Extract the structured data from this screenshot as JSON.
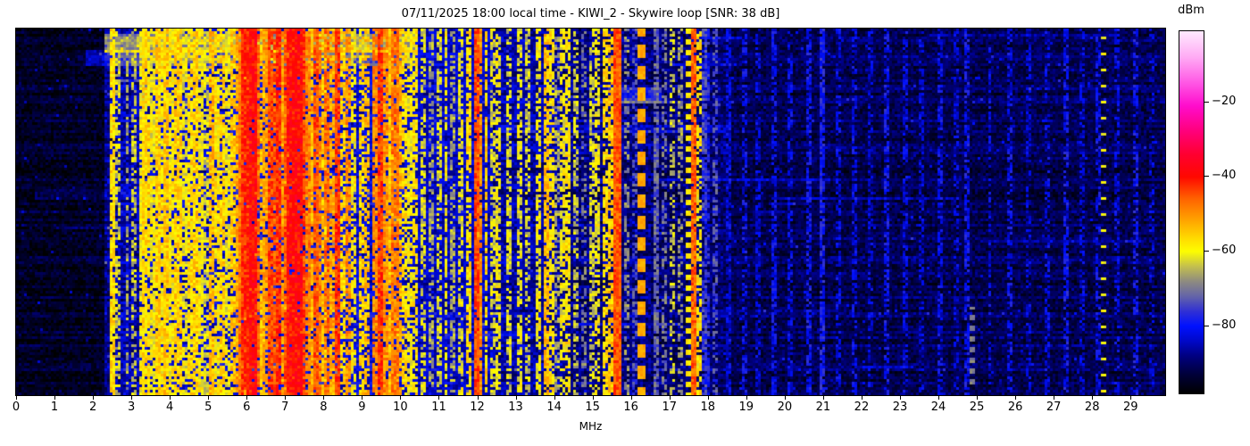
{
  "header": {
    "title": "07/11/2025 18:00 local time - KIWI_2 - Skywire loop [SNR: 38 dB]"
  },
  "axes": {
    "xlabel": "MHz",
    "xticks": [
      0,
      1,
      2,
      3,
      4,
      5,
      6,
      7,
      8,
      9,
      10,
      11,
      12,
      13,
      14,
      15,
      16,
      17,
      18,
      19,
      20,
      21,
      22,
      23,
      24,
      25,
      26,
      27,
      28,
      29
    ]
  },
  "colorbar": {
    "label": "dBm",
    "top_dbm": -1,
    "bottom_dbm": -98,
    "ticks": [
      {
        "value": -20,
        "label": "−20"
      },
      {
        "value": -40,
        "label": "−40"
      },
      {
        "value": -60,
        "label": "−60"
      },
      {
        "value": -80,
        "label": "−80"
      }
    ]
  },
  "chart_data": {
    "type": "heatmap",
    "title": "07/11/2025 18:00 local time - KIWI_2 - Skywire loop [SNR: 38 dB]",
    "xlabel": "MHz",
    "ylabel": "",
    "x_range_mhz": [
      0,
      29.9
    ],
    "colorbar_label": "dBm",
    "colorbar_ticks_dbm": [
      -20,
      -40,
      -60,
      -80
    ],
    "legend": "none",
    "grid": false,
    "colormap_stops": [
      [
        -1,
        "#ffeaff"
      ],
      [
        -8,
        "#ffaaf4"
      ],
      [
        -15,
        "#ff55e4"
      ],
      [
        -21,
        "#ff0ccc"
      ],
      [
        -28,
        "#ff0078"
      ],
      [
        -34,
        "#ff0030"
      ],
      [
        -40,
        "#ff0800"
      ],
      [
        -46,
        "#ff6400"
      ],
      [
        -52,
        "#ffa800"
      ],
      [
        -57,
        "#ffe000"
      ],
      [
        -60,
        "#fdfd00"
      ],
      [
        -64,
        "#c3bf4e"
      ],
      [
        -68,
        "#8e8b80"
      ],
      [
        -72,
        "#6464a8"
      ],
      [
        -76,
        "#3030d4"
      ],
      [
        -80,
        "#0011ff"
      ],
      [
        -84,
        "#0008c8"
      ],
      [
        -88,
        "#000080"
      ],
      [
        -93,
        "#000038"
      ],
      [
        -98,
        "#000000"
      ]
    ],
    "noise_floor_segments": [
      [
        0.0,
        2.3,
        -94.5,
        3.5
      ],
      [
        2.3,
        2.6,
        -87,
        5
      ],
      [
        2.6,
        3.2,
        -85,
        5
      ],
      [
        3.2,
        5.7,
        -82.5,
        5
      ],
      [
        5.7,
        8.7,
        -81,
        5.5
      ],
      [
        8.7,
        10.1,
        -82,
        5
      ],
      [
        10.1,
        12.4,
        -83.5,
        4.5
      ],
      [
        12.4,
        14.2,
        -86,
        4.5
      ],
      [
        14.2,
        16.5,
        -88,
        4.5
      ],
      [
        16.5,
        18.6,
        -89,
        4.5
      ],
      [
        18.6,
        29.9,
        -91,
        4
      ]
    ],
    "signal_bands": [
      [
        2.46,
        0.07,
        -57,
        0.9
      ],
      [
        2.62,
        0.06,
        -63,
        0.6
      ],
      [
        2.86,
        0.06,
        -66,
        0.5
      ],
      [
        3.06,
        0.06,
        -64,
        0.55
      ],
      [
        3.22,
        0.07,
        -60,
        0.75
      ],
      [
        3.35,
        0.09,
        -57,
        0.85
      ],
      [
        3.5,
        0.07,
        -60,
        0.8
      ],
      [
        3.63,
        0.07,
        -56,
        0.85
      ],
      [
        3.76,
        0.09,
        -58,
        0.8
      ],
      [
        3.9,
        0.07,
        -55,
        0.9
      ],
      [
        4.04,
        0.07,
        -59,
        0.8
      ],
      [
        4.18,
        0.09,
        -56,
        0.85
      ],
      [
        4.33,
        0.07,
        -61,
        0.7
      ],
      [
        4.47,
        0.07,
        -57,
        0.8
      ],
      [
        4.62,
        0.09,
        -56,
        0.85
      ],
      [
        4.78,
        0.07,
        -59,
        0.8
      ],
      [
        4.92,
        0.07,
        -62,
        0.7
      ],
      [
        5.06,
        0.09,
        -54,
        0.85
      ],
      [
        5.2,
        0.07,
        -58,
        0.8
      ],
      [
        5.34,
        0.07,
        -56,
        0.8
      ],
      [
        5.48,
        0.07,
        -60,
        0.75
      ],
      [
        5.62,
        0.07,
        -55,
        0.8
      ],
      [
        5.75,
        0.07,
        -52,
        0.8
      ],
      [
        5.85,
        0.08,
        -48,
        0.9
      ],
      [
        5.93,
        0.1,
        -42,
        0.95
      ],
      [
        6.03,
        0.08,
        -45,
        0.9
      ],
      [
        6.12,
        0.12,
        -39,
        0.95
      ],
      [
        6.24,
        0.08,
        -47,
        0.85
      ],
      [
        6.36,
        0.07,
        -54,
        0.75
      ],
      [
        6.47,
        0.07,
        -51,
        0.8
      ],
      [
        6.58,
        0.08,
        -44,
        0.9
      ],
      [
        6.7,
        0.08,
        -46,
        0.85
      ],
      [
        6.8,
        0.09,
        -42,
        0.9
      ],
      [
        6.92,
        0.07,
        -51,
        0.8
      ],
      [
        7.02,
        0.08,
        -45,
        0.9
      ],
      [
        7.12,
        0.1,
        -40,
        0.95
      ],
      [
        7.22,
        0.08,
        -43,
        0.9
      ],
      [
        7.32,
        0.1,
        -39,
        0.95
      ],
      [
        7.44,
        0.08,
        -44,
        0.9
      ],
      [
        7.55,
        0.07,
        -48,
        0.85
      ],
      [
        7.66,
        0.07,
        -53,
        0.8
      ],
      [
        7.76,
        0.08,
        -45,
        0.85
      ],
      [
        7.87,
        0.07,
        -49,
        0.85
      ],
      [
        7.98,
        0.07,
        -55,
        0.75
      ],
      [
        8.08,
        0.07,
        -47,
        0.8
      ],
      [
        8.2,
        0.07,
        -52,
        0.75
      ],
      [
        8.32,
        0.09,
        -43,
        0.9
      ],
      [
        8.45,
        0.07,
        -56,
        0.7
      ],
      [
        8.6,
        0.07,
        -50,
        0.75
      ],
      [
        8.76,
        0.07,
        -59,
        0.65
      ],
      [
        8.94,
        0.07,
        -56,
        0.7
      ],
      [
        9.12,
        0.07,
        -54,
        0.7
      ],
      [
        9.3,
        0.08,
        -49,
        0.8
      ],
      [
        9.43,
        0.09,
        -43,
        0.95
      ],
      [
        9.56,
        0.08,
        -50,
        0.85
      ],
      [
        9.7,
        0.08,
        -54,
        0.85
      ],
      [
        9.83,
        0.08,
        -48,
        0.85
      ],
      [
        9.94,
        0.08,
        -53,
        0.8
      ],
      [
        10.05,
        0.07,
        -57,
        0.75
      ],
      [
        10.2,
        0.07,
        -60,
        0.7
      ],
      [
        10.38,
        0.07,
        -58,
        0.7
      ],
      [
        10.55,
        0.07,
        -62,
        0.6
      ],
      [
        10.75,
        0.06,
        -66,
        0.55
      ],
      [
        10.95,
        0.06,
        -62,
        0.6
      ],
      [
        11.15,
        0.06,
        -60,
        0.65
      ],
      [
        11.35,
        0.06,
        -66,
        0.5
      ],
      [
        11.55,
        0.06,
        -61,
        0.6
      ],
      [
        11.72,
        0.06,
        -57,
        0.75
      ],
      [
        11.93,
        0.09,
        -44,
        0.95
      ],
      [
        12.05,
        0.07,
        -50,
        0.85
      ],
      [
        12.2,
        0.06,
        -56,
        0.7
      ],
      [
        12.35,
        0.06,
        -62,
        0.6
      ],
      [
        12.5,
        0.06,
        -60,
        0.65
      ],
      [
        12.8,
        0.06,
        -62,
        0.6
      ],
      [
        13.05,
        0.06,
        -61,
        0.6
      ],
      [
        13.3,
        0.06,
        -63,
        0.55
      ],
      [
        13.58,
        0.06,
        -60,
        0.65
      ],
      [
        13.78,
        0.07,
        -54,
        0.8
      ],
      [
        13.92,
        0.06,
        -58,
        0.6
      ],
      [
        14.05,
        0.06,
        -66,
        0.5
      ],
      [
        14.18,
        0.06,
        -60,
        0.65
      ],
      [
        14.34,
        0.06,
        -58,
        0.7
      ],
      [
        14.52,
        0.06,
        -64,
        0.55
      ],
      [
        14.72,
        0.06,
        -70,
        0.45
      ],
      [
        14.92,
        0.06,
        -63,
        0.55
      ],
      [
        15.1,
        0.06,
        -60,
        0.6
      ],
      [
        15.28,
        0.06,
        -57,
        0.7
      ],
      [
        15.45,
        0.06,
        -55,
        0.7
      ],
      [
        15.61,
        0.09,
        -45,
        1.0
      ],
      [
        15.85,
        0.06,
        -68,
        0.5
      ],
      [
        16.05,
        0.06,
        -74,
        0.5
      ],
      [
        16.6,
        0.05,
        -72,
        0.85
      ],
      [
        16.85,
        0.06,
        -71,
        0.45
      ],
      [
        17.05,
        0.06,
        -64,
        0.5
      ],
      [
        17.25,
        0.06,
        -67,
        0.45
      ],
      [
        17.62,
        0.08,
        -46,
        0.95
      ],
      [
        17.74,
        0.06,
        -58,
        0.6
      ],
      [
        17.86,
        0.06,
        -75,
        0.7
      ],
      [
        17.97,
        0.06,
        -78,
        0.6
      ],
      [
        18.15,
        0.06,
        -74,
        0.5
      ],
      [
        18.5,
        0.06,
        -82,
        0.6
      ],
      [
        18.9,
        0.06,
        -81,
        0.5
      ],
      [
        19.3,
        0.06,
        -83,
        0.5
      ],
      [
        19.7,
        0.06,
        -81,
        0.55
      ],
      [
        20.1,
        0.06,
        -82,
        0.5
      ],
      [
        20.6,
        0.06,
        -80,
        0.65
      ],
      [
        20.95,
        0.06,
        -79,
        0.8
      ],
      [
        21.35,
        0.06,
        -82,
        0.5
      ],
      [
        21.8,
        0.06,
        -81,
        0.55
      ],
      [
        22.2,
        0.06,
        -83,
        0.45
      ],
      [
        22.6,
        0.06,
        -80,
        0.6
      ],
      [
        23.1,
        0.06,
        -82,
        0.5
      ],
      [
        23.55,
        0.06,
        -83,
        0.45
      ],
      [
        24.0,
        0.06,
        -81,
        0.55
      ],
      [
        24.4,
        0.06,
        -83,
        0.45
      ],
      [
        24.7,
        0.06,
        -80,
        0.6
      ],
      [
        25.3,
        0.06,
        -82,
        0.5
      ],
      [
        25.8,
        0.06,
        -81,
        0.55
      ],
      [
        26.3,
        0.06,
        -83,
        0.45
      ],
      [
        26.8,
        0.06,
        -82,
        0.5
      ],
      [
        27.3,
        0.06,
        -80,
        0.6
      ],
      [
        27.7,
        0.06,
        -83,
        0.45
      ],
      [
        28.1,
        0.06,
        -81,
        0.5
      ],
      [
        28.6,
        0.06,
        -82,
        0.45
      ],
      [
        29.1,
        0.06,
        -80,
        0.5
      ],
      [
        29.5,
        0.06,
        -83,
        0.4
      ]
    ],
    "dashed_markers": [
      {
        "f": 16.25,
        "width": 0.12,
        "level": -52,
        "dash_on": 5,
        "dash_off": 3,
        "phase": 2,
        "row_range": [
          0,
          1
        ]
      },
      {
        "f": 17.45,
        "width": 0.05,
        "level": -58,
        "dash_on": 2,
        "dash_off": 2,
        "phase": 0,
        "row_range": [
          0,
          1
        ]
      },
      {
        "f": 24.85,
        "width": 0.05,
        "level": -69,
        "dash_on": 2,
        "dash_off": 2,
        "phase": 1,
        "row_range": [
          0.76,
          0.97
        ]
      },
      {
        "f": 28.25,
        "width": 0.05,
        "level": -60,
        "dash_on": 1,
        "dash_off": 5,
        "phase": 3,
        "row_range": [
          0,
          1
        ]
      }
    ],
    "broadband_events": [
      {
        "rows": [
          2,
          8
        ],
        "f": [
          2.3,
          10.3
        ],
        "boost": 17
      },
      {
        "rows": [
          8,
          13
        ],
        "f": [
          1.8,
          10.3
        ],
        "boost": 9
      },
      {
        "rows": [
          22,
          27
        ],
        "f": [
          15.4,
          16.7
        ],
        "boost": 10
      },
      {
        "rows": [
          60,
          63
        ],
        "f": [
          0.5,
          10.5
        ],
        "boost": 5
      },
      {
        "rows": [
          36,
          38
        ],
        "f": [
          12.5,
          18.5
        ],
        "boost": 5
      }
    ],
    "render": {
      "cols": 429,
      "rows": 137,
      "cell": 3,
      "seed": 20250711,
      "speckle_p": 0.015,
      "speckle_boost": 7,
      "row_jitter": 2.5,
      "streak_p": 0.12
    }
  }
}
